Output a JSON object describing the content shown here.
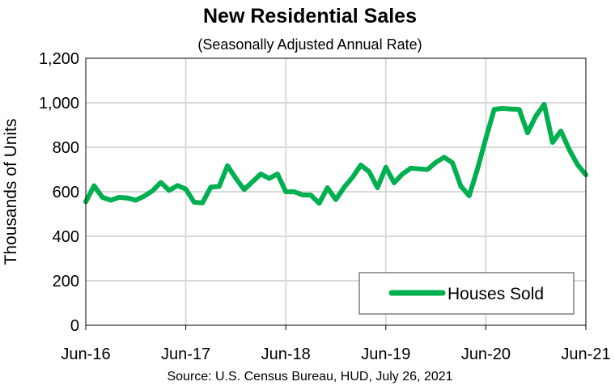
{
  "chart_data": {
    "type": "line",
    "title": "New Residential Sales",
    "subtitle": "(Seasonally Adjusted Annual Rate)",
    "ylabel": "Thousands of Units",
    "xlabel": "",
    "source": "Source:  U.S. Census Bureau, HUD, July 26, 2021",
    "ylim": [
      0,
      1200
    ],
    "yticks": [
      0,
      200,
      400,
      600,
      800,
      1000,
      1200
    ],
    "ytick_labels": [
      "0",
      "200",
      "400",
      "600",
      "800",
      "1,000",
      "1,200"
    ],
    "xtick_labels": [
      "Jun-16",
      "Jun-17",
      "Jun-18",
      "Jun-19",
      "Jun-20",
      "Jun-21"
    ],
    "xtick_positions": [
      "2016-06",
      "2017-06",
      "2018-06",
      "2019-06",
      "2020-06",
      "2021-06"
    ],
    "grid": "vertical",
    "legend_position": "bottom-right",
    "colors": {
      "series": "#00b050",
      "grid": "#d9d9d9",
      "axis": "#000000"
    },
    "x": [
      "2016-06",
      "2016-07",
      "2016-08",
      "2016-09",
      "2016-10",
      "2016-11",
      "2016-12",
      "2017-01",
      "2017-02",
      "2017-03",
      "2017-04",
      "2017-05",
      "2017-06",
      "2017-07",
      "2017-08",
      "2017-09",
      "2017-10",
      "2017-11",
      "2017-12",
      "2018-01",
      "2018-02",
      "2018-03",
      "2018-04",
      "2018-05",
      "2018-06",
      "2018-07",
      "2018-08",
      "2018-09",
      "2018-10",
      "2018-11",
      "2018-12",
      "2019-01",
      "2019-02",
      "2019-03",
      "2019-04",
      "2019-05",
      "2019-06",
      "2019-07",
      "2019-08",
      "2019-09",
      "2019-10",
      "2019-11",
      "2019-12",
      "2020-01",
      "2020-02",
      "2020-03",
      "2020-04",
      "2020-05",
      "2020-06",
      "2020-07",
      "2020-08",
      "2020-09",
      "2020-10",
      "2020-11",
      "2020-12",
      "2021-01",
      "2021-02",
      "2021-03",
      "2021-04",
      "2021-05",
      "2021-06"
    ],
    "series": [
      {
        "name": "Houses Sold",
        "values": [
          555,
          627,
          575,
          562,
          575,
          572,
          562,
          580,
          604,
          642,
          606,
          628,
          612,
          553,
          550,
          621,
          624,
          717,
          661,
          610,
          645,
          680,
          660,
          680,
          600,
          600,
          586,
          585,
          548,
          618,
          565,
          620,
          665,
          720,
          690,
          618,
          710,
          640,
          680,
          706,
          703,
          700,
          732,
          755,
          730,
          625,
          582,
          703,
          840,
          970,
          975,
          972,
          970,
          865,
          940,
          993,
          822,
          873,
          790,
          722,
          676
        ]
      }
    ]
  }
}
